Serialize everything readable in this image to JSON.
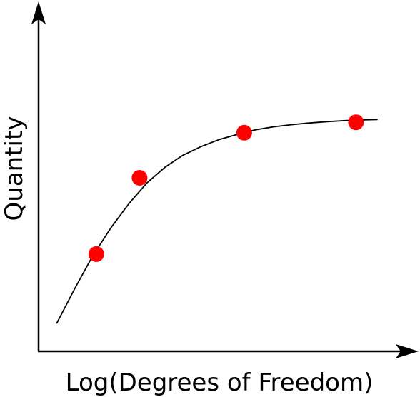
{
  "chart_data": {
    "type": "scatter",
    "title": "",
    "xlabel": "Log(Degrees of Freedom)",
    "ylabel": "Quantity",
    "grid": false,
    "legend": "none",
    "point_color": "#ff0000",
    "curve_color": "#000000",
    "axis_color": "#000000",
    "xlim": [
      0,
      10
    ],
    "ylim": [
      0,
      10
    ],
    "points": [
      {
        "x": 1.6,
        "y": 2.8
      },
      {
        "x": 2.8,
        "y": 5.0
      },
      {
        "x": 5.7,
        "y": 6.3
      },
      {
        "x": 8.8,
        "y": 6.6
      }
    ],
    "fit_curve": [
      {
        "x": 0.5,
        "y": 0.8
      },
      {
        "x": 1.0,
        "y": 1.8
      },
      {
        "x": 1.5,
        "y": 2.75
      },
      {
        "x": 2.0,
        "y": 3.55
      },
      {
        "x": 2.5,
        "y": 4.25
      },
      {
        "x": 3.0,
        "y": 4.85
      },
      {
        "x": 3.5,
        "y": 5.3
      },
      {
        "x": 4.0,
        "y": 5.65
      },
      {
        "x": 4.5,
        "y": 5.9
      },
      {
        "x": 5.0,
        "y": 6.1
      },
      {
        "x": 5.5,
        "y": 6.25
      },
      {
        "x": 6.0,
        "y": 6.38
      },
      {
        "x": 6.5,
        "y": 6.47
      },
      {
        "x": 7.0,
        "y": 6.53
      },
      {
        "x": 7.5,
        "y": 6.58
      },
      {
        "x": 8.0,
        "y": 6.62
      },
      {
        "x": 8.5,
        "y": 6.65
      },
      {
        "x": 9.0,
        "y": 6.67
      },
      {
        "x": 9.4,
        "y": 6.68
      }
    ]
  }
}
